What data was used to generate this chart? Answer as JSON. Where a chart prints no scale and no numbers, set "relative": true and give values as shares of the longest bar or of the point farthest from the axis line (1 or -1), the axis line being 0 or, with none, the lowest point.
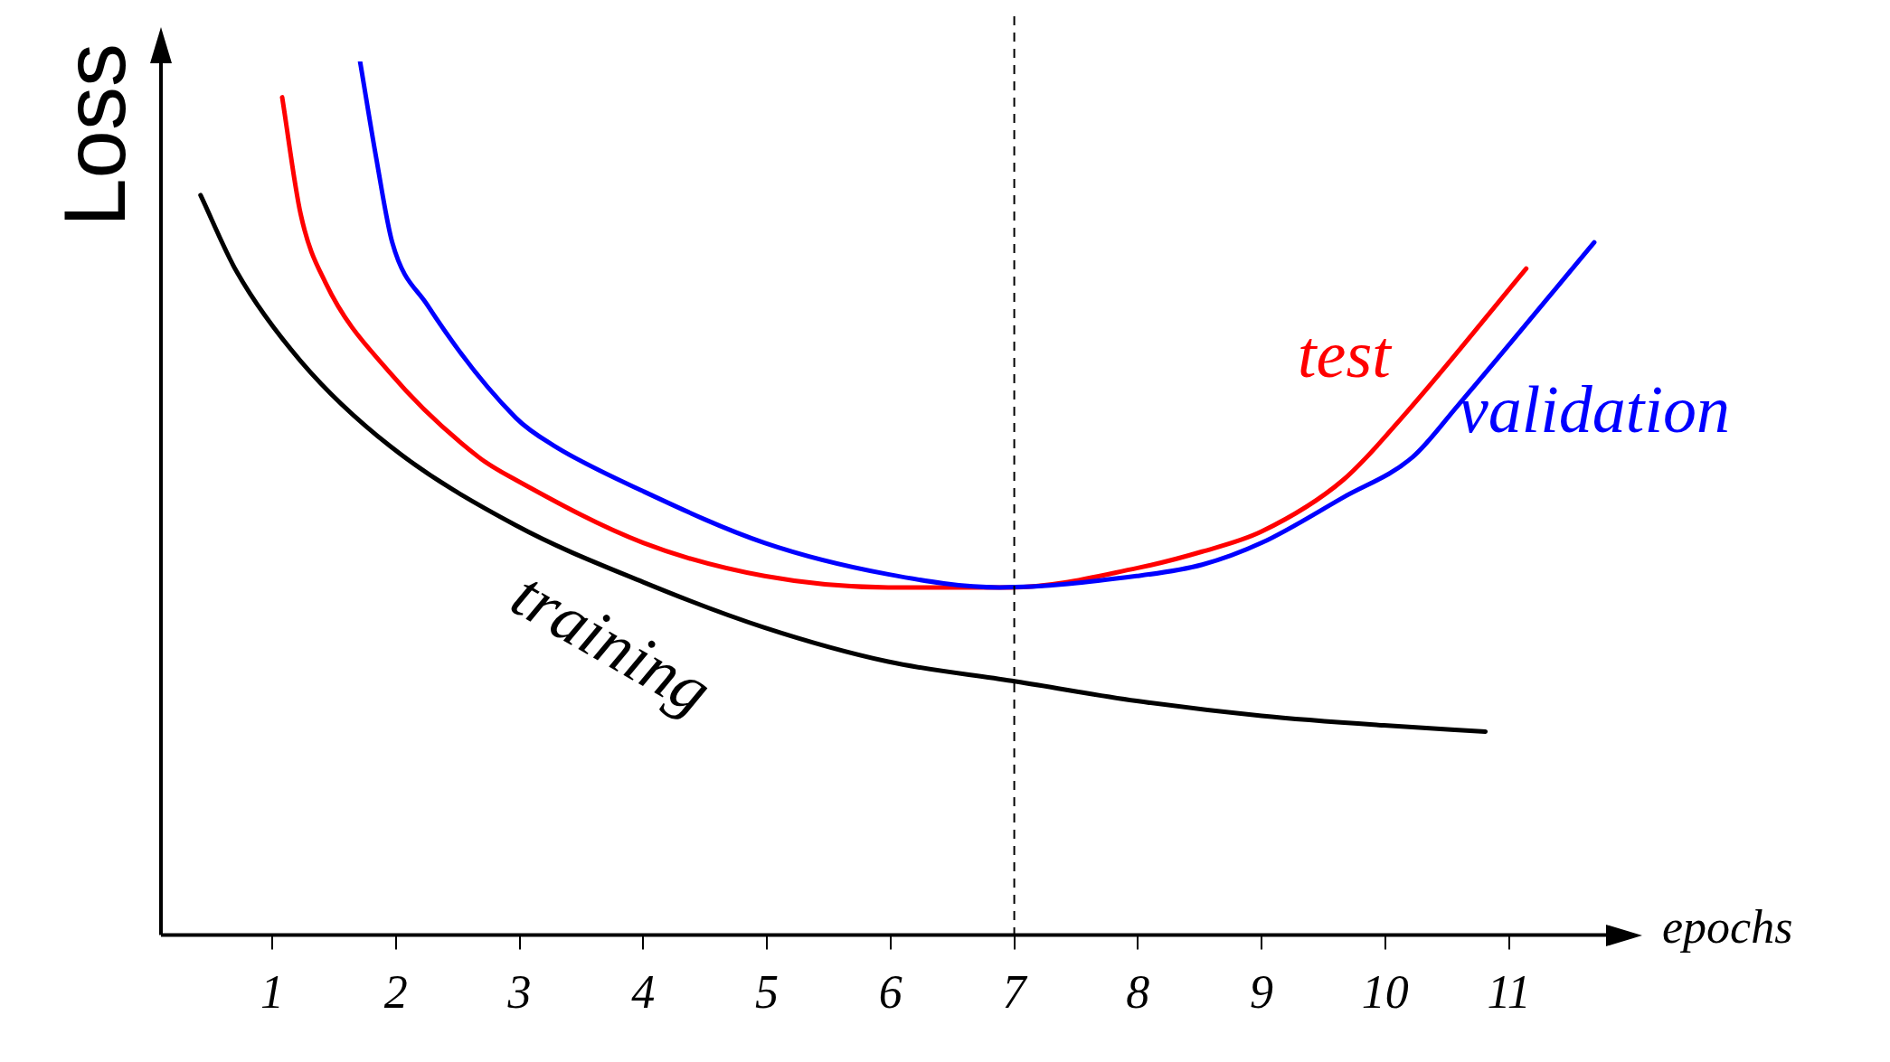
{
  "chart_data": {
    "type": "line",
    "xlabel": "epochs",
    "ylabel": "Loss",
    "relative": true,
    "legend": false,
    "grid": false,
    "marker": "none",
    "line_style": "solid",
    "xlim": [
      0.1,
      11.8
    ],
    "xticks": [
      1,
      2,
      3,
      4,
      5,
      6,
      7,
      8,
      9,
      10,
      11
    ],
    "ref_lines": [
      {
        "axis": "x",
        "value": 7,
        "color": "#000000",
        "line_style": "dashed"
      }
    ],
    "series": [
      {
        "name": "training",
        "color": "#000000",
        "x": [
          0.42,
          0.71,
          1.23,
          1.95,
          2.97,
          4.0,
          4.98,
          5.98,
          6.98,
          7.99,
          9.0,
          9.99,
          10.81
        ],
        "values": [
          0.847,
          0.76,
          0.657,
          0.56,
          0.469,
          0.404,
          0.352,
          0.313,
          0.291,
          0.268,
          0.251,
          0.24,
          0.233
        ]
      },
      {
        "name": "test",
        "color": "#ff0000",
        "x": [
          1.08,
          1.23,
          1.43,
          1.95,
          2.67,
          2.97,
          4.0,
          4.98,
          5.98,
          6.98,
          7.99,
          8.52,
          9.0,
          9.66,
          10.17,
          11.14
        ],
        "values": [
          0.959,
          0.825,
          0.747,
          0.644,
          0.547,
          0.521,
          0.449,
          0.411,
          0.398,
          0.398,
          0.42,
          0.439,
          0.462,
          0.521,
          0.598,
          0.763
        ]
      },
      {
        "name": "validation",
        "color": "#0000ff",
        "x": [
          1.71,
          1.84,
          1.97,
          2.25,
          2.97,
          3.28,
          4.0,
          4.98,
          5.98,
          6.88,
          7.99,
          8.52,
          9.0,
          9.66,
          10.22,
          10.58,
          11.69
        ],
        "values": [
          1.0,
          0.89,
          0.793,
          0.722,
          0.592,
          0.56,
          0.508,
          0.449,
          0.413,
          0.398,
          0.411,
          0.424,
          0.449,
          0.501,
          0.547,
          0.605,
          0.793
        ]
      }
    ]
  }
}
